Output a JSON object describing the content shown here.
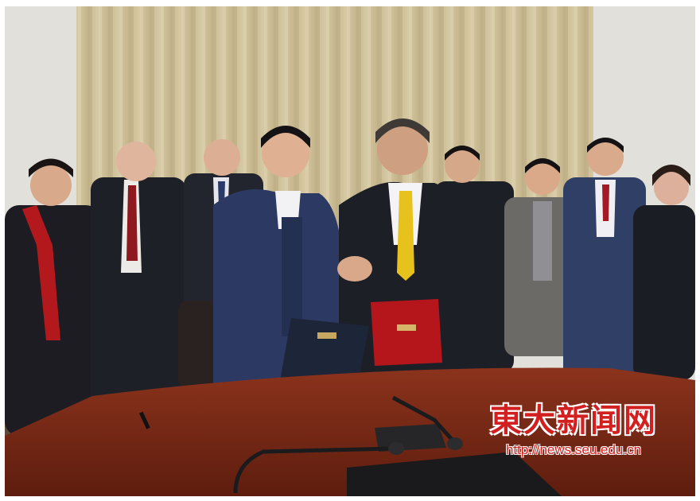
{
  "photo": {
    "subject": "signing-ceremony",
    "colors": {
      "curtain": "#cdbf98",
      "wall": "#e3e1dc",
      "table": "#7a2a18",
      "red_folder": "#b5161c",
      "navy_folder": "#1d2538",
      "yellow_tie": "#e8c21c",
      "watermark": "#d21f1f"
    }
  },
  "watermark": {
    "title": "東大新闻网",
    "url": "http://news.seu.edu.cn"
  }
}
